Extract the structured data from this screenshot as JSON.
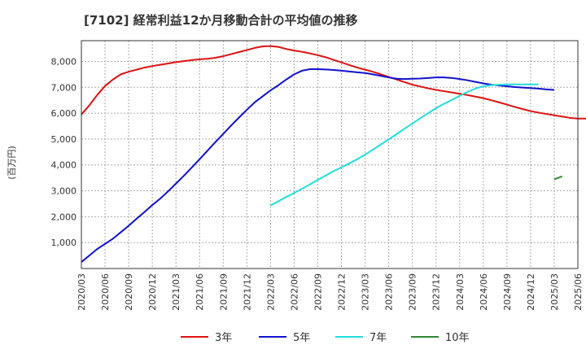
{
  "chart_data": {
    "type": "line",
    "title": "[7102]  経常利益12か月移動合計の平均値の推移",
    "ylabel": "(百万円)",
    "xlabel": "",
    "ylim": [
      0,
      8800
    ],
    "yticks": [
      1000,
      2000,
      3000,
      4000,
      5000,
      6000,
      7000,
      8000
    ],
    "ytick_labels": [
      "1,000",
      "2,000",
      "3,000",
      "4,000",
      "5,000",
      "6,000",
      "7,000",
      "8,000"
    ],
    "x_tick_labels": [
      "2020/03",
      "2020/06",
      "2020/09",
      "2020/12",
      "2021/03",
      "2021/06",
      "2021/09",
      "2021/12",
      "2022/03",
      "2022/06",
      "2022/09",
      "2022/12",
      "2023/03",
      "2023/06",
      "2023/09",
      "2023/12",
      "2024/03",
      "2024/06",
      "2024/09",
      "2024/12",
      "2025/03",
      "2025/06"
    ],
    "grid": true,
    "legend_position": "bottom",
    "series": [
      {
        "name": "3年",
        "color": "#dd1111",
        "start": 0,
        "values": [
          5950,
          6300,
          6700,
          7050,
          7300,
          7500,
          7600,
          7680,
          7760,
          7820,
          7870,
          7920,
          7970,
          8010,
          8050,
          8080,
          8100,
          8140,
          8200,
          8280,
          8360,
          8440,
          8520,
          8580,
          8590,
          8560,
          8480,
          8420,
          8370,
          8310,
          8240,
          8160,
          8060,
          7960,
          7860,
          7760,
          7680,
          7600,
          7500,
          7400,
          7300,
          7200,
          7100,
          7030,
          6960,
          6900,
          6850,
          6800,
          6750,
          6700,
          6640,
          6580,
          6500,
          6420,
          6330,
          6240,
          6160,
          6080,
          6020,
          5970,
          5920,
          5870,
          5820,
          5790,
          5790,
          5800
        ]
      },
      {
        "name": "5年",
        "color": "#1111cc",
        "start": 0,
        "values": [
          250,
          500,
          750,
          950,
          1150,
          1400,
          1650,
          1920,
          2180,
          2450,
          2700,
          2980,
          3280,
          3580,
          3900,
          4220,
          4550,
          4880,
          5200,
          5520,
          5830,
          6130,
          6420,
          6650,
          6880,
          7080,
          7300,
          7500,
          7640,
          7700,
          7700,
          7690,
          7670,
          7640,
          7610,
          7580,
          7550,
          7500,
          7440,
          7380,
          7330,
          7320,
          7330,
          7340,
          7360,
          7380,
          7380,
          7360,
          7320,
          7270,
          7210,
          7150,
          7100,
          7070,
          7040,
          7010,
          6990,
          6970,
          6950,
          6920,
          6900
        ]
      },
      {
        "name": "7年",
        "color": "#22dddd",
        "start": 24,
        "values": [
          2430,
          2600,
          2760,
          2920,
          3080,
          3250,
          3420,
          3590,
          3760,
          3910,
          4060,
          4220,
          4400,
          4590,
          4790,
          4990,
          5190,
          5400,
          5600,
          5800,
          6000,
          6190,
          6360,
          6510,
          6670,
          6820,
          6950,
          7040,
          7080,
          7100,
          7110,
          7110,
          7110,
          7110,
          7110
        ]
      },
      {
        "name": "10年",
        "color": "#338833",
        "start": 60,
        "values": [
          3440,
          3560
        ]
      }
    ]
  }
}
